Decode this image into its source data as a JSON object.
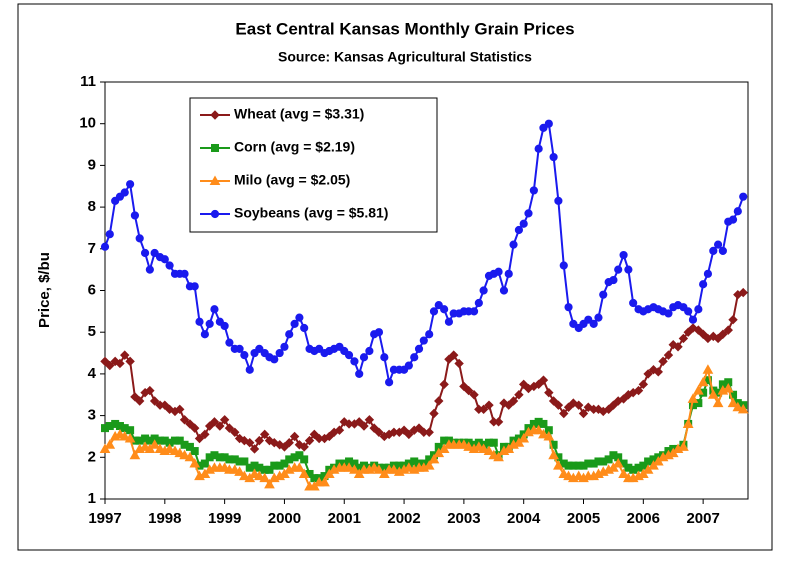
{
  "chart_data": {
    "type": "line",
    "title": "East Central Kansas Monthly Grain Prices",
    "subtitle": "Source:  Kansas Agricultural Statistics",
    "y_label": "Price, $/bu",
    "xlim": [
      1997,
      2007.75
    ],
    "xticks": [
      1997,
      1998,
      1999,
      2000,
      2001,
      2002,
      2003,
      2004,
      2005,
      2006,
      2007
    ],
    "ylim": [
      1,
      11
    ],
    "yticks": [
      1,
      2,
      3,
      4,
      5,
      6,
      7,
      8,
      9,
      10,
      11
    ],
    "legend": "top-left",
    "x": [
      1997,
      1997.08,
      1997.17,
      1997.25,
      1997.33,
      1997.42,
      1997.5,
      1997.58,
      1997.67,
      1997.75,
      1997.83,
      1997.92,
      1998,
      1998.08,
      1998.17,
      1998.25,
      1998.33,
      1998.42,
      1998.5,
      1998.58,
      1998.67,
      1998.75,
      1998.83,
      1998.92,
      1999,
      1999.08,
      1999.17,
      1999.25,
      1999.33,
      1999.42,
      1999.5,
      1999.58,
      1999.67,
      1999.75,
      1999.83,
      1999.92,
      2000,
      2000.08,
      2000.17,
      2000.25,
      2000.33,
      2000.42,
      2000.5,
      2000.58,
      2000.67,
      2000.75,
      2000.83,
      2000.92,
      2001,
      2001.08,
      2001.17,
      2001.25,
      2001.33,
      2001.42,
      2001.5,
      2001.58,
      2001.67,
      2001.75,
      2001.83,
      2001.92,
      2002,
      2002.08,
      2002.17,
      2002.25,
      2002.33,
      2002.42,
      2002.5,
      2002.58,
      2002.67,
      2002.75,
      2002.83,
      2002.92,
      2003,
      2003.08,
      2003.17,
      2003.25,
      2003.33,
      2003.42,
      2003.5,
      2003.58,
      2003.67,
      2003.75,
      2003.83,
      2003.92,
      2004,
      2004.08,
      2004.17,
      2004.25,
      2004.33,
      2004.42,
      2004.5,
      2004.58,
      2004.67,
      2004.75,
      2004.83,
      2004.92,
      2005,
      2005.08,
      2005.17,
      2005.25,
      2005.33,
      2005.42,
      2005.5,
      2005.58,
      2005.67,
      2005.75,
      2005.83,
      2005.92,
      2006,
      2006.08,
      2006.17,
      2006.25,
      2006.33,
      2006.42,
      2006.5,
      2006.58,
      2006.67,
      2006.75,
      2006.83,
      2006.92,
      2007,
      2007.08,
      2007.17,
      2007.25,
      2007.33,
      2007.42,
      2007.5,
      2007.58,
      2007.67
    ],
    "series": [
      {
        "name": "Wheat (avg = $3.31)",
        "color": "#8b1a1a",
        "marker": "diamond",
        "values": [
          4.3,
          4.2,
          4.3,
          4.25,
          4.45,
          4.3,
          3.45,
          3.35,
          3.55,
          3.6,
          3.35,
          3.25,
          3.25,
          3.15,
          3.1,
          3.15,
          2.9,
          2.8,
          2.7,
          2.45,
          2.55,
          2.75,
          2.85,
          2.75,
          2.9,
          2.7,
          2.6,
          2.45,
          2.4,
          2.35,
          2.2,
          2.4,
          2.55,
          2.4,
          2.35,
          2.3,
          2.25,
          2.35,
          2.5,
          2.3,
          2.25,
          2.4,
          2.55,
          2.45,
          2.45,
          2.5,
          2.6,
          2.65,
          2.85,
          2.8,
          2.8,
          2.85,
          2.75,
          2.9,
          2.7,
          2.6,
          2.5,
          2.55,
          2.6,
          2.6,
          2.65,
          2.55,
          2.65,
          2.7,
          2.6,
          2.6,
          3.05,
          3.35,
          3.75,
          4.35,
          4.45,
          4.25,
          3.7,
          3.6,
          3.5,
          3.15,
          3.15,
          3.25,
          2.85,
          2.85,
          3.3,
          3.25,
          3.35,
          3.5,
          3.75,
          3.65,
          3.7,
          3.75,
          3.85,
          3.55,
          3.35,
          3.25,
          3.05,
          3.2,
          3.3,
          3.25,
          3.05,
          3.2,
          3.15,
          3.15,
          3.1,
          3.15,
          3.25,
          3.35,
          3.4,
          3.5,
          3.55,
          3.6,
          3.75,
          4.0,
          4.1,
          4.05,
          4.3,
          4.45,
          4.7,
          4.65,
          4.85,
          5.0,
          5.1,
          5.05,
          4.95,
          4.85,
          4.9,
          4.85,
          4.95,
          5.05,
          5.3,
          5.9,
          5.95
        ]
      },
      {
        "name": "Corn (avg = $2.19)",
        "color": "#1a9a1a",
        "marker": "square",
        "values": [
          2.7,
          2.75,
          2.8,
          2.75,
          2.7,
          2.65,
          2.4,
          2.4,
          2.45,
          2.4,
          2.45,
          2.4,
          2.4,
          2.35,
          2.4,
          2.4,
          2.3,
          2.25,
          2.15,
          1.8,
          1.85,
          2.0,
          2.05,
          2.0,
          2.0,
          1.95,
          1.95,
          1.9,
          1.9,
          1.75,
          1.8,
          1.75,
          1.7,
          1.7,
          1.8,
          1.8,
          1.85,
          1.95,
          2.0,
          2.05,
          1.95,
          1.6,
          1.5,
          1.5,
          1.55,
          1.7,
          1.75,
          1.85,
          1.85,
          1.9,
          1.85,
          1.75,
          1.8,
          1.75,
          1.8,
          1.75,
          1.75,
          1.75,
          1.8,
          1.8,
          1.8,
          1.85,
          1.9,
          1.85,
          1.85,
          1.95,
          2.05,
          2.25,
          2.4,
          2.4,
          2.35,
          2.35,
          2.35,
          2.35,
          2.3,
          2.35,
          2.3,
          2.35,
          2.35,
          2.05,
          2.25,
          2.25,
          2.4,
          2.45,
          2.55,
          2.7,
          2.8,
          2.85,
          2.8,
          2.65,
          2.3,
          2.0,
          1.85,
          1.8,
          1.8,
          1.8,
          1.8,
          1.85,
          1.85,
          1.9,
          1.9,
          1.95,
          2.05,
          2.0,
          1.85,
          1.75,
          1.7,
          1.75,
          1.8,
          1.9,
          1.95,
          2.0,
          2.05,
          2.15,
          2.2,
          2.2,
          2.3,
          2.8,
          3.25,
          3.3,
          3.55,
          3.85,
          3.6,
          3.55,
          3.75,
          3.8,
          3.5,
          3.3,
          3.25
        ]
      },
      {
        "name": "Milo (avg = $2.05)",
        "color": "#ff8c1a",
        "marker": "triangle",
        "values": [
          2.2,
          2.3,
          2.5,
          2.55,
          2.5,
          2.45,
          2.05,
          2.2,
          2.25,
          2.2,
          2.3,
          2.2,
          2.15,
          2.2,
          2.15,
          2.1,
          2.05,
          2.0,
          1.85,
          1.55,
          1.6,
          1.7,
          1.75,
          1.75,
          1.75,
          1.7,
          1.7,
          1.65,
          1.55,
          1.5,
          1.6,
          1.55,
          1.5,
          1.35,
          1.5,
          1.55,
          1.6,
          1.7,
          1.75,
          1.75,
          1.6,
          1.3,
          1.3,
          1.4,
          1.4,
          1.6,
          1.7,
          1.75,
          1.75,
          1.75,
          1.7,
          1.6,
          1.7,
          1.7,
          1.75,
          1.7,
          1.6,
          1.7,
          1.7,
          1.65,
          1.7,
          1.75,
          1.7,
          1.75,
          1.75,
          1.8,
          1.95,
          2.1,
          2.2,
          2.3,
          2.3,
          2.3,
          2.3,
          2.25,
          2.2,
          2.25,
          2.2,
          2.15,
          2.05,
          2.0,
          2.15,
          2.2,
          2.3,
          2.35,
          2.45,
          2.6,
          2.65,
          2.65,
          2.55,
          2.5,
          2.05,
          1.8,
          1.6,
          1.55,
          1.5,
          1.55,
          1.5,
          1.55,
          1.55,
          1.6,
          1.65,
          1.7,
          1.75,
          1.85,
          1.6,
          1.5,
          1.5,
          1.55,
          1.6,
          1.7,
          1.8,
          1.9,
          2.0,
          2.05,
          2.1,
          2.2,
          2.25,
          2.8,
          3.4,
          3.6,
          3.8,
          4.1,
          3.5,
          3.3,
          3.6,
          3.65,
          3.3,
          3.2,
          3.15
        ]
      },
      {
        "name": "Soybeans (avg = $5.81)",
        "color": "#1a1aee",
        "marker": "circle",
        "values": [
          7.05,
          7.35,
          8.15,
          8.25,
          8.35,
          8.55,
          7.8,
          7.25,
          6.9,
          6.5,
          6.9,
          6.8,
          6.75,
          6.6,
          6.4,
          6.4,
          6.4,
          6.1,
          6.1,
          5.25,
          4.95,
          5.2,
          5.55,
          5.25,
          5.15,
          4.75,
          4.6,
          4.6,
          4.45,
          4.1,
          4.5,
          4.6,
          4.5,
          4.4,
          4.35,
          4.5,
          4.65,
          4.95,
          5.2,
          5.35,
          5.1,
          4.6,
          4.55,
          4.6,
          4.5,
          4.55,
          4.6,
          4.65,
          4.55,
          4.45,
          4.3,
          4.0,
          4.4,
          4.55,
          4.95,
          5.0,
          4.4,
          3.8,
          4.1,
          4.1,
          4.1,
          4.2,
          4.4,
          4.6,
          4.8,
          4.95,
          5.5,
          5.65,
          5.55,
          5.25,
          5.45,
          5.45,
          5.5,
          5.5,
          5.5,
          5.7,
          6.0,
          6.35,
          6.4,
          6.45,
          6.0,
          6.4,
          7.1,
          7.45,
          7.6,
          7.85,
          8.4,
          9.4,
          9.9,
          10.0,
          9.2,
          8.15,
          6.6,
          5.6,
          5.2,
          5.1,
          5.2,
          5.3,
          5.2,
          5.35,
          5.9,
          6.2,
          6.25,
          6.5,
          6.85,
          6.5,
          5.7,
          5.55,
          5.5,
          5.55,
          5.6,
          5.55,
          5.5,
          5.45,
          5.6,
          5.65,
          5.6,
          5.5,
          5.3,
          5.55,
          6.15,
          6.4,
          6.95,
          7.1,
          6.95,
          7.65,
          7.7,
          7.9,
          8.25
        ]
      }
    ]
  }
}
